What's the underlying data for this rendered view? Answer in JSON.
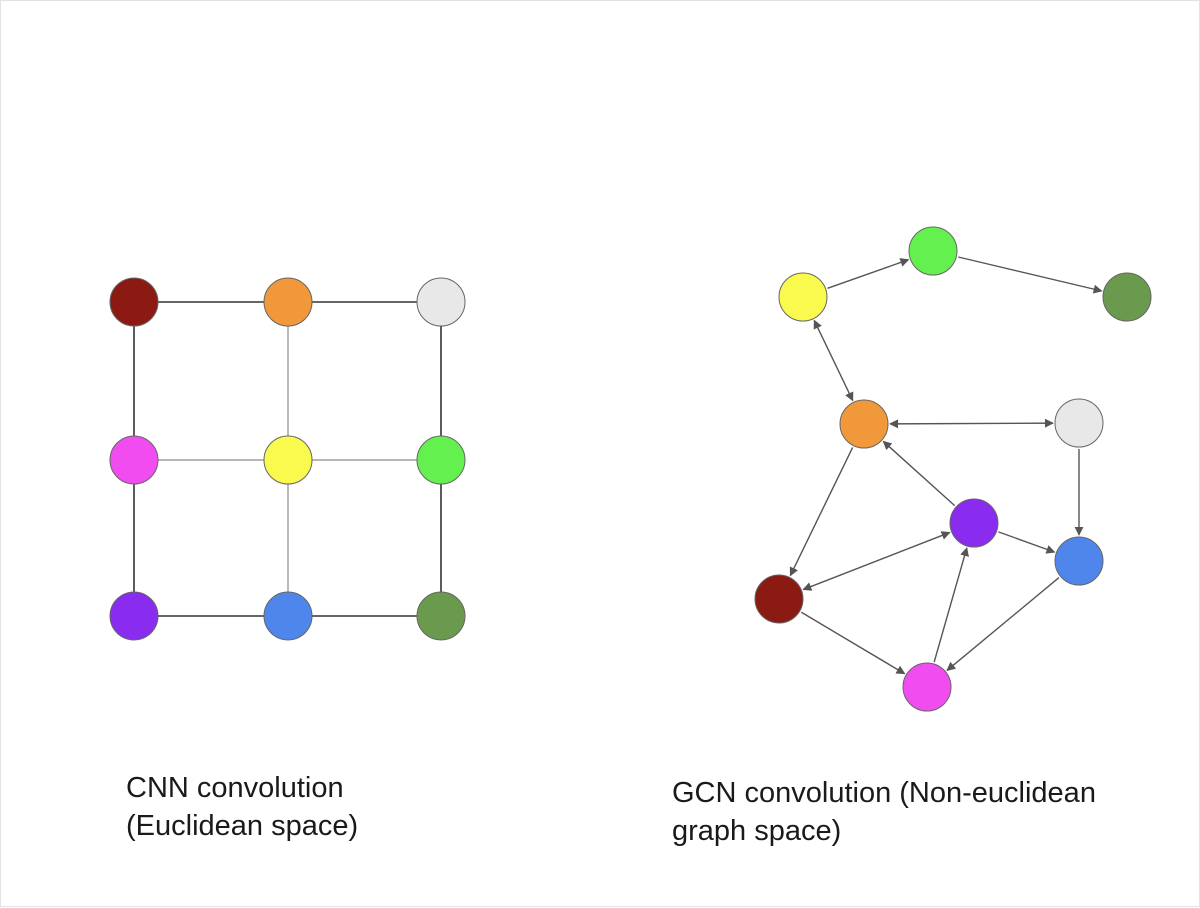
{
  "cnn": {
    "caption_line1": "CNN convolution",
    "caption_line2": "(Euclidean space)",
    "grid_colors": [
      [
        "#8b1a13",
        "#f0983a",
        "#e8e8e8"
      ],
      [
        "#f04cf0",
        "#fafa4e",
        "#64f04e"
      ],
      [
        "#8a2bf0",
        "#4f86ec",
        "#6a9a4e"
      ]
    ]
  },
  "gcn": {
    "caption_line1": "GCN convolution (Non-euclidean",
    "caption_line2": "graph space)",
    "nodes": {
      "yellow": "#fafa4e",
      "green": "#64f04e",
      "dkgreen": "#6a9a4e",
      "orange": "#f0983a",
      "white": "#e8e8e8",
      "purple": "#8a2bf0",
      "blue": "#4f86ec",
      "red": "#8b1a13",
      "magenta": "#f04cf0"
    },
    "edges": [
      {
        "from": "yellow",
        "to": "green",
        "direction": "forward"
      },
      {
        "from": "green",
        "to": "dkgreen",
        "direction": "forward"
      },
      {
        "from": "yellow",
        "to": "orange",
        "direction": "both"
      },
      {
        "from": "orange",
        "to": "white",
        "direction": "both"
      },
      {
        "from": "white",
        "to": "blue",
        "direction": "forward"
      },
      {
        "from": "purple",
        "to": "orange",
        "direction": "forward"
      },
      {
        "from": "purple",
        "to": "blue",
        "direction": "forward"
      },
      {
        "from": "orange",
        "to": "red",
        "direction": "forward"
      },
      {
        "from": "red",
        "to": "purple",
        "direction": "both"
      },
      {
        "from": "red",
        "to": "magenta",
        "direction": "forward"
      },
      {
        "from": "magenta",
        "to": "purple",
        "direction": "forward"
      },
      {
        "from": "blue",
        "to": "magenta",
        "direction": "forward"
      }
    ]
  }
}
